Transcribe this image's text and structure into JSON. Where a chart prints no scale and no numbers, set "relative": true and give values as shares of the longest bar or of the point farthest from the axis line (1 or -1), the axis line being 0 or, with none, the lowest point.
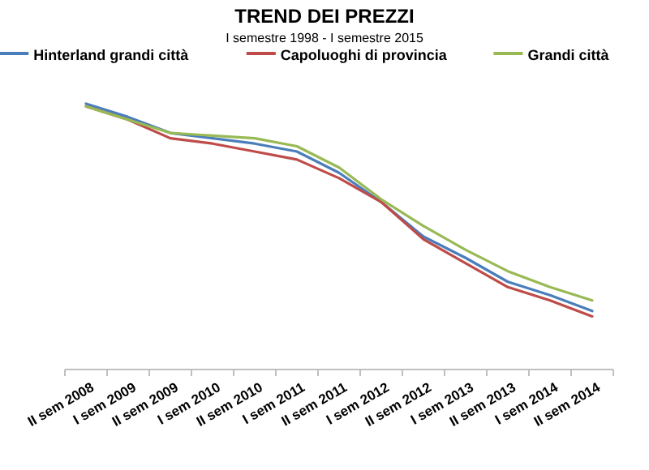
{
  "chart_data": {
    "type": "line",
    "title": "TREND DEI PREZZI",
    "subtitle": "I semestre 1998 - I semestre 2015",
    "relative": true,
    "legend": "top",
    "marker": "none",
    "line_style": "solid",
    "categories": [
      "II sem 2008",
      "I sem 2009",
      "II sem 2009",
      "I sem 2010",
      "II sem 2010",
      "I sem 2011",
      "II sem 2011",
      "I sem 2012",
      "II sem 2012",
      "I sem 2013",
      "II sem 2013",
      "I sem 2014",
      "II sem 2014"
    ],
    "series": [
      {
        "name": "Hinterland grandi città",
        "color": "#4a7ebb",
        "values": [
          1.0,
          0.95,
          0.89,
          0.87,
          0.85,
          0.82,
          0.74,
          0.63,
          0.5,
          0.42,
          0.33,
          0.28,
          0.22
        ]
      },
      {
        "name": "Capoluoghi di provincia",
        "color": "#be4b48",
        "values": [
          0.99,
          0.94,
          0.87,
          0.85,
          0.82,
          0.79,
          0.72,
          0.63,
          0.49,
          0.4,
          0.31,
          0.26,
          0.2
        ]
      },
      {
        "name": "Grandi città",
        "color": "#98b954",
        "values": [
          0.99,
          0.94,
          0.89,
          0.88,
          0.87,
          0.84,
          0.76,
          0.64,
          0.54,
          0.45,
          0.37,
          0.31,
          0.26
        ]
      }
    ]
  }
}
